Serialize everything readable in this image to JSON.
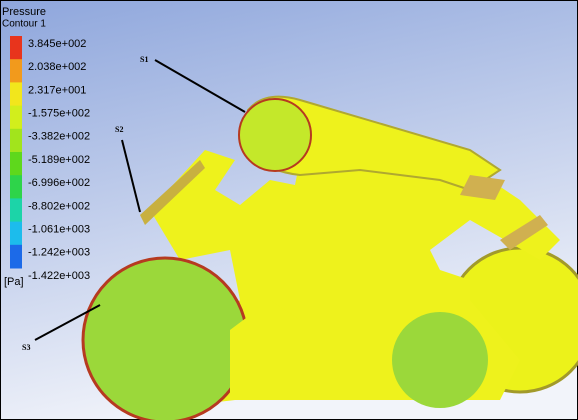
{
  "legend": {
    "title": "Pressure",
    "subtitle": "Contour 1",
    "levels": [
      "3.845e+002",
      "2.038e+002",
      "2.317e+001",
      "-1.575e+002",
      "-3.382e+002",
      "-5.189e+002",
      "-6.996e+002",
      "-8.802e+002",
      "-1.061e+003",
      "-1.242e+003",
      "-1.422e+003"
    ],
    "unit": "[Pa]"
  },
  "labels": [
    "S1",
    "S2",
    "S3"
  ]
}
